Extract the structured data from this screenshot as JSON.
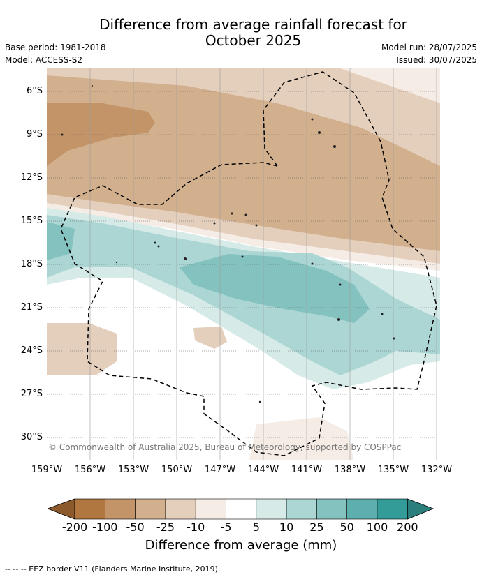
{
  "title": "Difference from average rainfall forecast for October 2025",
  "title_line1": "Difference from average rainfall forecast for",
  "title_line2": "October 2025",
  "base_period": "Base period: 1981-2018",
  "model": "Model: ACCESS-S2",
  "model_run": "Model run: 28/07/2025",
  "issued": "Issued: 30/07/2025",
  "copyright": "© Commonwealth of Australia 2025, Bureau of Meteorology, supported by COSPPac",
  "y_ticks": [
    "6°S",
    "9°S",
    "12°S",
    "15°S",
    "18°S",
    "21°S",
    "24°S",
    "27°S",
    "30°S"
  ],
  "x_ticks": [
    "159°W",
    "156°W",
    "153°W",
    "150°W",
    "147°W",
    "144°W",
    "141°W",
    "138°W",
    "135°W",
    "132°W"
  ],
  "legend": {
    "title": "Difference from average (mm)",
    "labels": [
      "-200",
      "-100",
      "-50",
      "-25",
      "-10",
      "-5",
      "5",
      "10",
      "25",
      "50",
      "100",
      "200"
    ],
    "colors": [
      "#8c5a2a",
      "#b07840",
      "#c29468",
      "#d2b08e",
      "#e4cfbc",
      "#f5ece5",
      "#ffffff",
      "#d6ebe8",
      "#acd6d4",
      "#84c2c0",
      "#5dafad",
      "#339c98",
      "#2a7f7c"
    ]
  },
  "footer": "-- -- -- EEZ border V11 (Flanders Marine Institute, 2019)."
}
